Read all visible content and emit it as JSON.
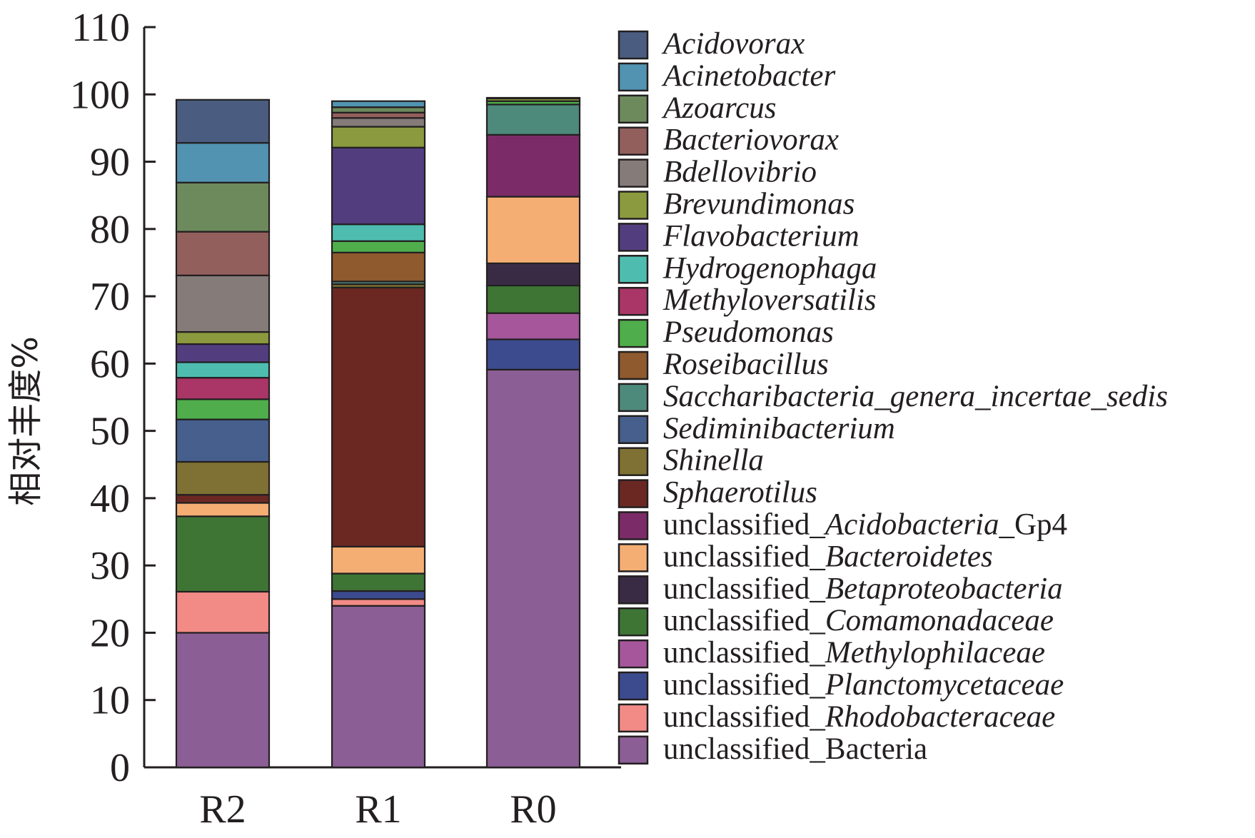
{
  "chart_data": {
    "type": "bar",
    "stacked": true,
    "ylabel": "相对丰度%",
    "ylim": [
      0,
      110
    ],
    "yticks": [
      0,
      10,
      20,
      30,
      40,
      50,
      60,
      70,
      80,
      90,
      100,
      110
    ],
    "categories": [
      "R2",
      "R1",
      "R0"
    ],
    "legend_position": "right",
    "grid": false,
    "series": [
      {
        "name": "unclassified_Bacteria",
        "prefix": "unclassified_",
        "italic_part": "",
        "suffix": "Bacteria",
        "color": "#8b5e95",
        "values": [
          20.0,
          24.0,
          59.1
        ]
      },
      {
        "name": "unclassified_Rhodobacteraceae",
        "prefix": "unclassified_",
        "italic_part": "Rhodobacteraceae",
        "suffix": "",
        "color": "#f28b86",
        "values": [
          6.1,
          1.0,
          0.0
        ]
      },
      {
        "name": "unclassified_Planctomycetaceae",
        "prefix": "unclassified_",
        "italic_part": "Planctomycetaceae",
        "suffix": "",
        "color": "#3c4b8e",
        "values": [
          0.0,
          1.2,
          4.5
        ]
      },
      {
        "name": "unclassified_Methylophilaceae",
        "prefix": "unclassified_",
        "italic_part": "Methylophilaceae",
        "suffix": "",
        "color": "#a6569b",
        "values": [
          0.0,
          0.0,
          3.9
        ]
      },
      {
        "name": "unclassified_Comamonadaceae",
        "prefix": "unclassified_",
        "italic_part": "Comamonadaceae",
        "suffix": "",
        "color": "#3e7535",
        "values": [
          11.2,
          2.6,
          4.1
        ]
      },
      {
        "name": "unclassified_Betaproteobacteria",
        "prefix": "unclassified_",
        "italic_part": "Betaproteobacteria",
        "suffix": "",
        "color": "#3a2b45",
        "values": [
          0.0,
          0.0,
          3.3
        ]
      },
      {
        "name": "unclassified_Bacteroidetes",
        "prefix": "unclassified_",
        "italic_part": "Bacteroidetes",
        "suffix": "",
        "color": "#f4ae74",
        "values": [
          2.0,
          4.0,
          9.9
        ]
      },
      {
        "name": "unclassified_Acidobacteria_Gp4",
        "prefix": "unclassified_",
        "italic_part": "Acidobacteria",
        "suffix": "_Gp4",
        "color": "#7b2c68",
        "values": [
          0.0,
          0.0,
          9.2
        ]
      },
      {
        "name": "Sphaerotilus",
        "prefix": "",
        "italic_part": "Sphaerotilus",
        "suffix": "",
        "color": "#6b2822",
        "values": [
          1.2,
          38.5,
          0.0
        ]
      },
      {
        "name": "Shinella",
        "prefix": "",
        "italic_part": "Shinella",
        "suffix": "",
        "color": "#7f7133",
        "values": [
          4.9,
          0.5,
          0.0
        ]
      },
      {
        "name": "Sediminibacterium",
        "prefix": "",
        "italic_part": "Sediminibacterium",
        "suffix": "",
        "color": "#465f8d",
        "values": [
          6.3,
          0.0,
          0.0
        ]
      },
      {
        "name": "Saccharibacteria_genera_incertae_sedis",
        "prefix": "",
        "italic_part": "Saccharibacteria_genera_incertae_sedis",
        "suffix": "",
        "color": "#4e8a7c",
        "values": [
          0.0,
          0.4,
          4.5
        ]
      },
      {
        "name": "Roseibacillus",
        "prefix": "",
        "italic_part": "Roseibacillus",
        "suffix": "",
        "color": "#8e5a2e",
        "values": [
          0.0,
          4.3,
          0.0
        ]
      },
      {
        "name": "Pseudomonas",
        "prefix": "",
        "italic_part": "Pseudomonas",
        "suffix": "",
        "color": "#4fae4b",
        "values": [
          3.0,
          1.7,
          0.5
        ]
      },
      {
        "name": "Methyloversatilis",
        "prefix": "",
        "italic_part": "Methyloversatilis",
        "suffix": "",
        "color": "#a93667",
        "values": [
          3.2,
          0.0,
          0.0
        ]
      },
      {
        "name": "Hydrogenophaga",
        "prefix": "",
        "italic_part": "Hydrogenophaga",
        "suffix": "",
        "color": "#4ebdb0",
        "values": [
          2.3,
          2.5,
          0.0
        ]
      },
      {
        "name": "Flavobacterium",
        "prefix": "",
        "italic_part": "Flavobacterium",
        "suffix": "",
        "color": "#523e7f",
        "values": [
          2.7,
          11.4,
          0.0
        ]
      },
      {
        "name": "Brevundimonas",
        "prefix": "",
        "italic_part": "Brevundimonas",
        "suffix": "",
        "color": "#8c9a3f",
        "values": [
          1.8,
          3.1,
          0.4
        ]
      },
      {
        "name": "Bdellovibrio",
        "prefix": "",
        "italic_part": "Bdellovibrio",
        "suffix": "",
        "color": "#857c7a",
        "values": [
          8.4,
          1.3,
          0.0
        ]
      },
      {
        "name": "Bacteriovorax",
        "prefix": "",
        "italic_part": "Bacteriovorax",
        "suffix": "",
        "color": "#935f5c",
        "values": [
          6.5,
          0.8,
          0.0
        ]
      },
      {
        "name": "Azoarcus",
        "prefix": "",
        "italic_part": "Azoarcus",
        "suffix": "",
        "color": "#6d8a5d",
        "values": [
          7.3,
          0.8,
          0.0
        ]
      },
      {
        "name": "Acinetobacter",
        "prefix": "",
        "italic_part": "Acinetobacter",
        "suffix": "",
        "color": "#5193b1",
        "values": [
          5.9,
          0.9,
          0.0
        ]
      },
      {
        "name": "Acidovorax",
        "prefix": "",
        "italic_part": "Acidovorax",
        "suffix": "",
        "color": "#4a5d80",
        "values": [
          6.4,
          0.0,
          0.1
        ]
      }
    ]
  }
}
